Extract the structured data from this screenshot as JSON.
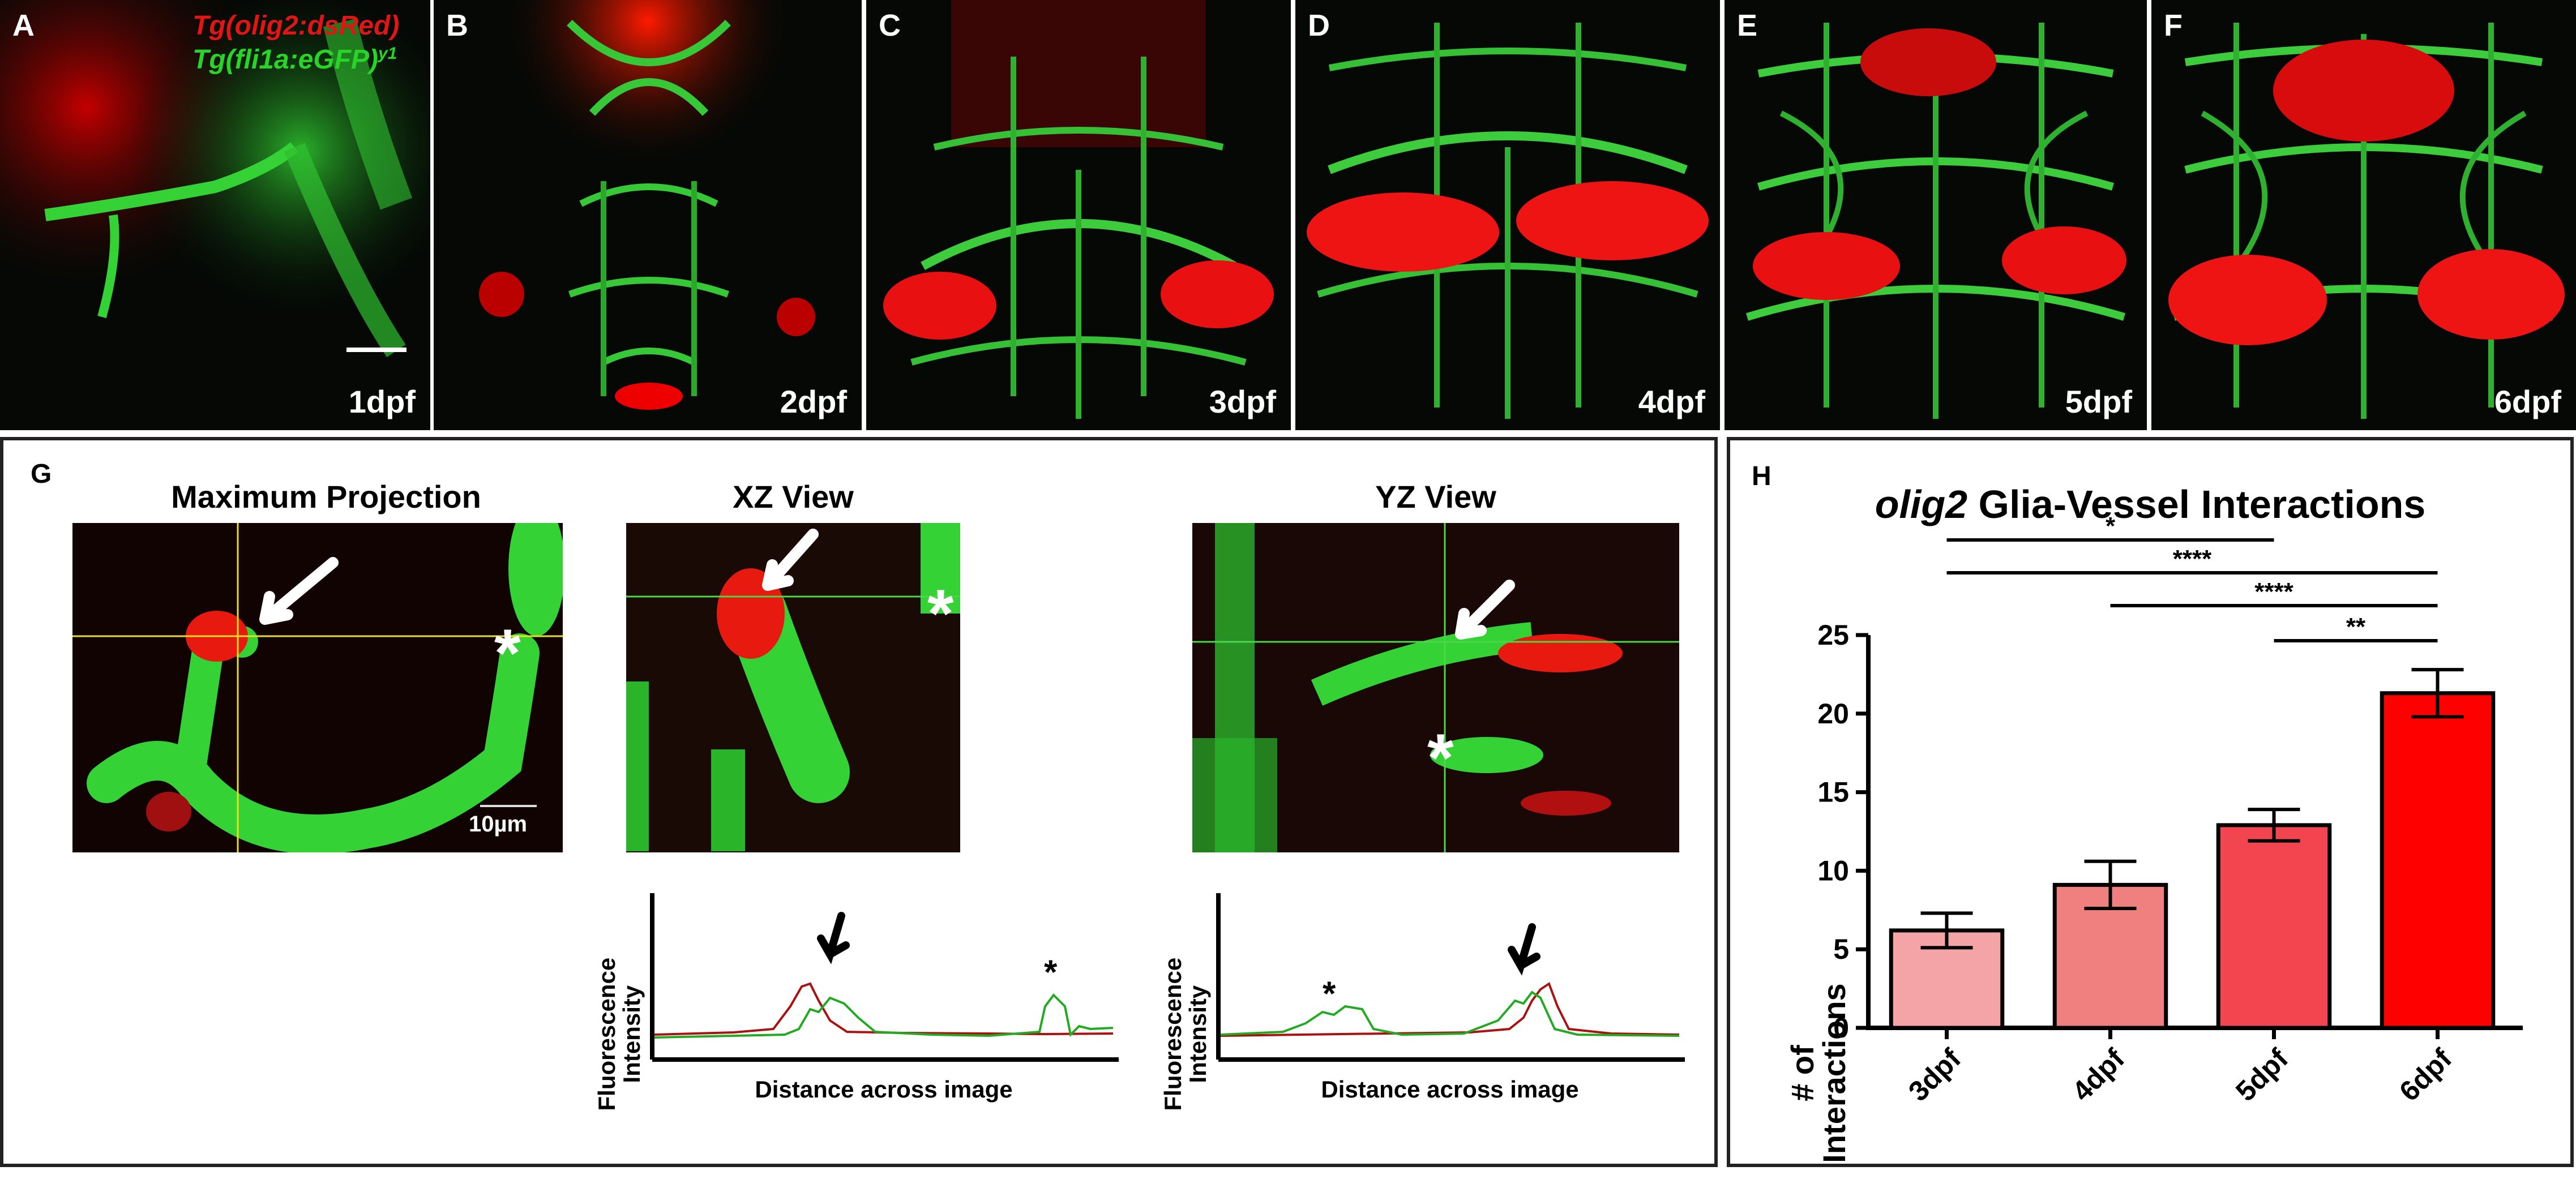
{
  "panels": {
    "A": {
      "letter": "A",
      "day": "1dpf",
      "legend_line1": "Tg(olig2:dsRed)",
      "legend_line2": "Tg(fli1a:eGFP)",
      "legend_sup": "y1"
    },
    "B": {
      "letter": "B",
      "day": "2dpf"
    },
    "C": {
      "letter": "C",
      "day": "3dpf"
    },
    "D": {
      "letter": "D",
      "day": "4dpf"
    },
    "E": {
      "letter": "E",
      "day": "5dpf"
    },
    "F": {
      "letter": "F",
      "day": "6dpf"
    }
  },
  "panelG": {
    "letter": "G",
    "titles": {
      "max": "Maximum Projection",
      "xz": "XZ View",
      "yz": "YZ View"
    },
    "scale_bar": "10µm",
    "asterisk": "*",
    "profile_ylabel_1": "Fluorescence",
    "profile_ylabel_2": "Intensity",
    "profile_xlabel": "Distance across image",
    "colors": {
      "green": "#22aa22",
      "red": "#aa1111"
    }
  },
  "chart_data": {
    "type": "bar",
    "panel_letter": "H",
    "title_italic": "olig2",
    "title_rest": " Glia-Vessel Interactions",
    "ylabel": "# of Interactions",
    "categories": [
      "3dpf",
      "4dpf",
      "5dpf",
      "6dpf"
    ],
    "values": [
      6.2,
      9.1,
      12.9,
      21.3
    ],
    "errors": [
      1.1,
      1.5,
      1.0,
      1.5
    ],
    "colors": [
      "#f4a3a6",
      "#f08080",
      "#f2454f",
      "#ff0000"
    ],
    "ylim": [
      0,
      25
    ],
    "yticks": [
      0,
      5,
      10,
      15,
      20,
      25
    ],
    "significance": [
      {
        "from": 0,
        "to": 2,
        "label": "*"
      },
      {
        "from": 0,
        "to": 3,
        "label": "****"
      },
      {
        "from": 1,
        "to": 3,
        "label": "****"
      },
      {
        "from": 2,
        "to": 3,
        "label": "**"
      }
    ]
  }
}
